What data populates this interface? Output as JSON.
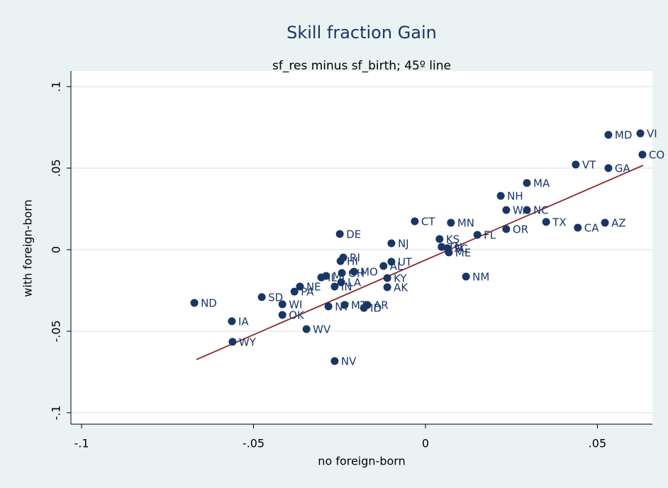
{
  "chart_data": {
    "type": "scatter",
    "title": "Skill fraction Gain",
    "subtitle": "sf_res minus sf_birth; 45º line",
    "x_label": "no foreign-born",
    "y_label": "with foreign-born",
    "color": "#1a3665",
    "line_color": "#8b2a2a",
    "grid": true,
    "xlim": [
      -0.1031,
      0.066
    ],
    "ylim": [
      -0.107,
      0.1096
    ],
    "xticks": [
      {
        "value": -0.1,
        "label": "-.1"
      },
      {
        "value": -0.05,
        "label": "-.05"
      },
      0,
      {
        "value": 0.05,
        "label": ".05"
      }
    ],
    "yticks": [
      {
        "value": -0.1,
        "label": "-.1"
      },
      {
        "value": -0.05,
        "label": "-.05"
      },
      0,
      {
        "value": 0.05,
        "label": ".05"
      },
      {
        "value": 0.1,
        "label": ".1"
      }
    ],
    "labels": [
      "VI",
      "MD",
      "CO",
      "VT",
      "GA",
      "MA",
      "NH",
      "WA",
      "NC",
      "TX",
      "AZ",
      "CA",
      "OR",
      "FL",
      "CT",
      "MN",
      "DE",
      "NJ",
      "KS",
      "TN",
      "SC",
      "ME",
      "RI",
      "HI",
      "UT",
      "AL",
      "MO",
      "OH",
      "MI",
      "IL",
      "KY",
      "LA",
      "AK",
      "NM",
      "NE",
      "PA",
      "IN",
      "SD",
      "WI",
      "ND",
      "NY",
      "MT",
      "ID",
      "AR",
      "OK",
      "IA",
      "WV",
      "WY",
      "NV"
    ],
    "x": [
      0.0625,
      0.0532,
      0.0631,
      0.0437,
      0.0532,
      0.0295,
      0.0219,
      0.0235,
      0.0295,
      0.0351,
      0.0522,
      0.0443,
      0.0235,
      0.0151,
      -0.0031,
      0.0074,
      -0.0249,
      -0.0099,
      0.0041,
      0.0047,
      0.0064,
      0.0068,
      -0.0239,
      -0.0247,
      -0.0099,
      -0.0122,
      -0.0208,
      -0.0243,
      -0.0289,
      -0.0303,
      -0.0111,
      -0.0245,
      -0.0111,
      0.0118,
      -0.0365,
      -0.0381,
      -0.0264,
      -0.0476,
      -0.0416,
      -0.0672,
      -0.0282,
      -0.0235,
      -0.0179,
      -0.0169,
      -0.0416,
      -0.0563,
      -0.0346,
      -0.0561,
      -0.0264
    ],
    "y": [
      0.0713,
      0.0704,
      0.0583,
      0.0522,
      0.05,
      0.0409,
      0.033,
      0.0243,
      0.0243,
      0.017,
      0.0165,
      0.0135,
      0.0126,
      0.0091,
      0.0174,
      0.0165,
      0.0096,
      0.0039,
      0.0065,
      0.0017,
      0.0009,
      -0.0017,
      -0.0048,
      -0.007,
      -0.0074,
      -0.01,
      -0.0135,
      -0.0143,
      -0.0161,
      -0.017,
      -0.0174,
      -0.02,
      -0.023,
      -0.0165,
      -0.0226,
      -0.0257,
      -0.0226,
      -0.0291,
      -0.0335,
      -0.0326,
      -0.0348,
      -0.0339,
      -0.0357,
      -0.0339,
      -0.04,
      -0.0439,
      -0.0487,
      -0.0565,
      -0.0683
    ],
    "fit_line": {
      "x": [
        -0.0666,
        0.0633
      ],
      "y": [
        -0.0674,
        0.0517
      ]
    }
  }
}
